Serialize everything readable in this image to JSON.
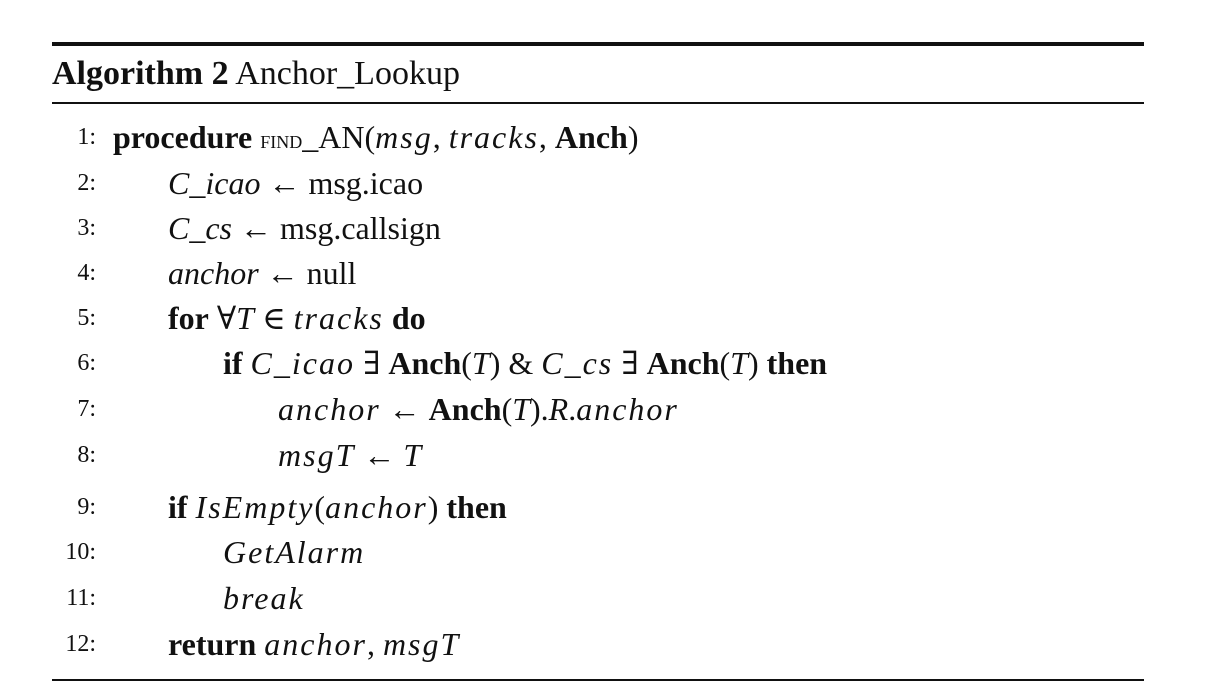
{
  "caption": {
    "label": "Algorithm 2",
    "name": "Anchor_Lookup"
  },
  "lines": [
    {
      "num": "1:",
      "indent": 0,
      "tokens": [
        {
          "t": "procedure",
          "s": "kw"
        },
        {
          "t": " "
        },
        {
          "t": "find",
          "s": "sc"
        },
        {
          "t": "_AN("
        },
        {
          "t": "msg",
          "s": "mi"
        },
        {
          "t": ", "
        },
        {
          "t": "tracks",
          "s": "mi"
        },
        {
          "t": ", "
        },
        {
          "t": "Anch",
          "s": "bf"
        },
        {
          "t": ")"
        }
      ]
    },
    {
      "num": "2:",
      "indent": 1,
      "tokens": [
        {
          "t": "C_icao",
          "s": "it"
        },
        {
          "t": " ← msg.icao"
        }
      ]
    },
    {
      "num": "3:",
      "indent": 1,
      "tokens": [
        {
          "t": "C_cs",
          "s": "it"
        },
        {
          "t": " ← msg.callsign"
        }
      ]
    },
    {
      "num": "4:",
      "indent": 1,
      "tokens": [
        {
          "t": "anchor",
          "s": "it"
        },
        {
          "t": " ← null"
        }
      ]
    },
    {
      "num": "5:",
      "indent": 1,
      "tokens": [
        {
          "t": "for",
          "s": "kw"
        },
        {
          "t": " ∀"
        },
        {
          "t": "T",
          "s": "it"
        },
        {
          "t": " ∈ "
        },
        {
          "t": "tracks",
          "s": "mi"
        },
        {
          "t": " "
        },
        {
          "t": "do",
          "s": "kw"
        }
      ]
    },
    {
      "num": "6:",
      "indent": 2,
      "tokens": [
        {
          "t": "if",
          "s": "kw"
        },
        {
          "t": " "
        },
        {
          "t": "C_icao",
          "s": "mi"
        },
        {
          "t": " ∃ "
        },
        {
          "t": "Anch",
          "s": "bf"
        },
        {
          "t": "("
        },
        {
          "t": "T",
          "s": "it"
        },
        {
          "t": ") & "
        },
        {
          "t": "C_cs",
          "s": "mi"
        },
        {
          "t": " ∃ "
        },
        {
          "t": "Anch",
          "s": "bf"
        },
        {
          "t": "("
        },
        {
          "t": "T",
          "s": "it"
        },
        {
          "t": ") "
        },
        {
          "t": "then",
          "s": "kw"
        }
      ]
    },
    {
      "num": "7:",
      "indent": 3,
      "tokens": [
        {
          "t": "anchor",
          "s": "mi"
        },
        {
          "t": " ← "
        },
        {
          "t": "Anch",
          "s": "bf"
        },
        {
          "t": "("
        },
        {
          "t": "T",
          "s": "it"
        },
        {
          "t": ")."
        },
        {
          "t": "R",
          "s": "it"
        },
        {
          "t": "."
        },
        {
          "t": "anchor",
          "s": "mi"
        }
      ]
    },
    {
      "num": "8:",
      "indent": 3,
      "tokens": [
        {
          "t": "msgT",
          "s": "mi"
        },
        {
          "t": " ← "
        },
        {
          "t": "T",
          "s": "it"
        }
      ]
    },
    {
      "num": "9:",
      "indent": 1,
      "tokens": [
        {
          "t": "if",
          "s": "kw"
        },
        {
          "t": " "
        },
        {
          "t": "IsEmpty",
          "s": "mi"
        },
        {
          "t": "("
        },
        {
          "t": "anchor",
          "s": "mi"
        },
        {
          "t": ") "
        },
        {
          "t": "then",
          "s": "kw"
        }
      ]
    },
    {
      "num": "10:",
      "indent": 2,
      "tokens": [
        {
          "t": "GetAlarm",
          "s": "mi"
        }
      ]
    },
    {
      "num": "11:",
      "indent": 2,
      "tokens": [
        {
          "t": "break",
          "s": "mi"
        }
      ]
    },
    {
      "num": "12:",
      "indent": 1,
      "tokens": [
        {
          "t": "return",
          "s": "kw"
        },
        {
          "t": " "
        },
        {
          "t": "anchor",
          "s": "mi"
        },
        {
          "t": ", "
        },
        {
          "t": "msgT",
          "s": "mi"
        }
      ]
    }
  ]
}
